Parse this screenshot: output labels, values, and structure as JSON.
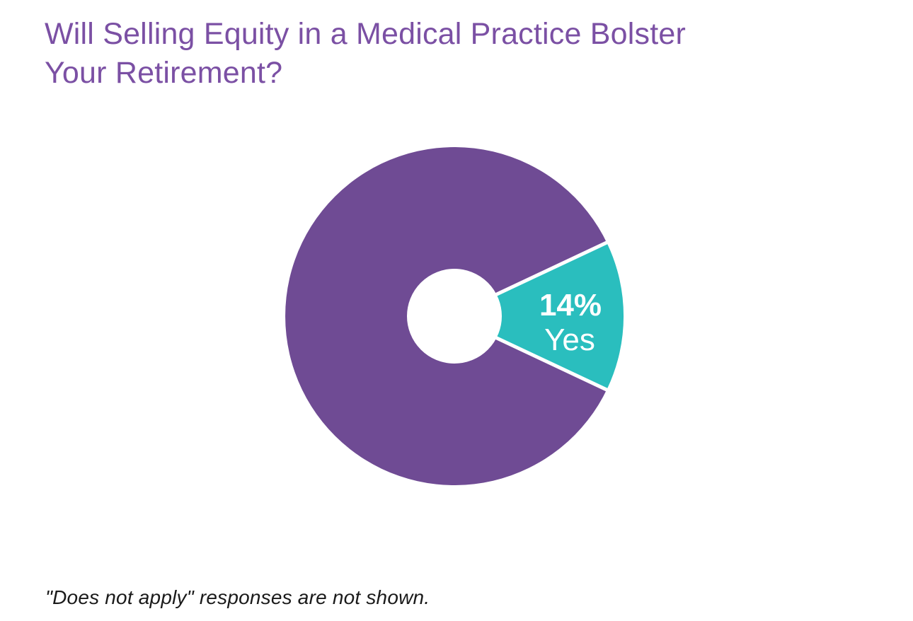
{
  "page": {
    "background": "#FFFFFF",
    "title": "Will Selling Equity in a Medical Practice Bolster Your Retirement?",
    "title_lines": [
      "Will Selling Equity in a Medical Practice Bolster",
      "Your Retirement?"
    ],
    "title_color": "#7B50A4",
    "footnote": "\"Does not apply\" responses are not shown.",
    "footnote_color": "#1A1A1A"
  },
  "chart_data": {
    "type": "pie",
    "subtype": "donut",
    "title": "Will Selling Equity in a Medical Practice Bolster Your Retirement?",
    "units": "percent",
    "slices": [
      {
        "label": "Yes",
        "value": 14,
        "pct_label": "14%",
        "color": "#2ABEBE",
        "label_color": "#FFFFFF",
        "labeled": true
      },
      {
        "label": "",
        "value": 86,
        "pct_label": "",
        "color": "#6F4B94",
        "labeled": false
      }
    ],
    "layout_hints": {
      "legend": "none",
      "yes_slice_orientation": "centered at 3 o'clock",
      "donut_hole_ratio": 0.26,
      "slice_separator": "white gap between slices"
    },
    "note": "\"Does not apply\" responses are not shown."
  }
}
